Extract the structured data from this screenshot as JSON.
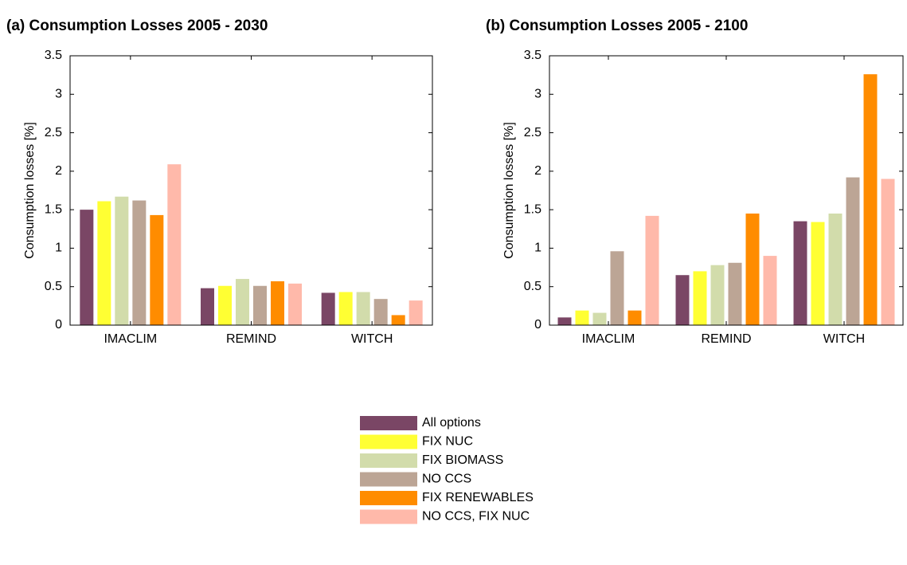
{
  "chart_data": [
    {
      "type": "bar",
      "title": "(a) Consumption Losses 2005 - 2030",
      "ylabel": "Consumption losses [%]",
      "categories": [
        "IMACLIM",
        "REMIND",
        "WITCH"
      ],
      "series": [
        {
          "name": "All options",
          "color": "#7a4665",
          "values": [
            1.5,
            0.48,
            0.42
          ]
        },
        {
          "name": "FIX NUC",
          "color": "#ffff33",
          "values": [
            1.61,
            0.51,
            0.43
          ]
        },
        {
          "name": "FIX BIOMASS",
          "color": "#d2dcab",
          "values": [
            1.67,
            0.6,
            0.43
          ]
        },
        {
          "name": "NO CCS",
          "color": "#bca595",
          "values": [
            1.62,
            0.51,
            0.34
          ]
        },
        {
          "name": "FIX RENEWABLES",
          "color": "#ff8c00",
          "values": [
            1.43,
            0.57,
            0.13
          ]
        },
        {
          "name": "NO CCS, FIX NUC",
          "color": "#ffb9aa",
          "values": [
            2.09,
            0.54,
            0.32
          ]
        }
      ],
      "ylim": [
        0,
        3.5
      ],
      "yticks": [
        0,
        0.5,
        1,
        1.5,
        2,
        2.5,
        3,
        3.5
      ]
    },
    {
      "type": "bar",
      "title": "(b) Consumption Losses 2005 - 2100",
      "ylabel": "Consumption losses [%]",
      "categories": [
        "IMACLIM",
        "REMIND",
        "WITCH"
      ],
      "series": [
        {
          "color": "#7a4665",
          "values": [
            0.1,
            0.65,
            1.35
          ]
        },
        {
          "color": "#ffff33",
          "values": [
            0.19,
            0.7,
            1.34
          ]
        },
        {
          "color": "#d2dcab",
          "values": [
            0.16,
            0.78,
            1.45
          ]
        },
        {
          "color": "#bca595",
          "values": [
            0.96,
            0.81,
            1.92
          ]
        },
        {
          "color": "#ff8c00",
          "values": [
            0.19,
            1.45,
            3.26
          ]
        },
        {
          "color": "#ffb9aa",
          "values": [
            1.42,
            0.9,
            1.9
          ]
        }
      ],
      "ylim": [
        0,
        3.5
      ],
      "yticks": [
        0,
        0.5,
        1,
        1.5,
        2,
        2.5,
        3,
        3.5
      ]
    }
  ]
}
